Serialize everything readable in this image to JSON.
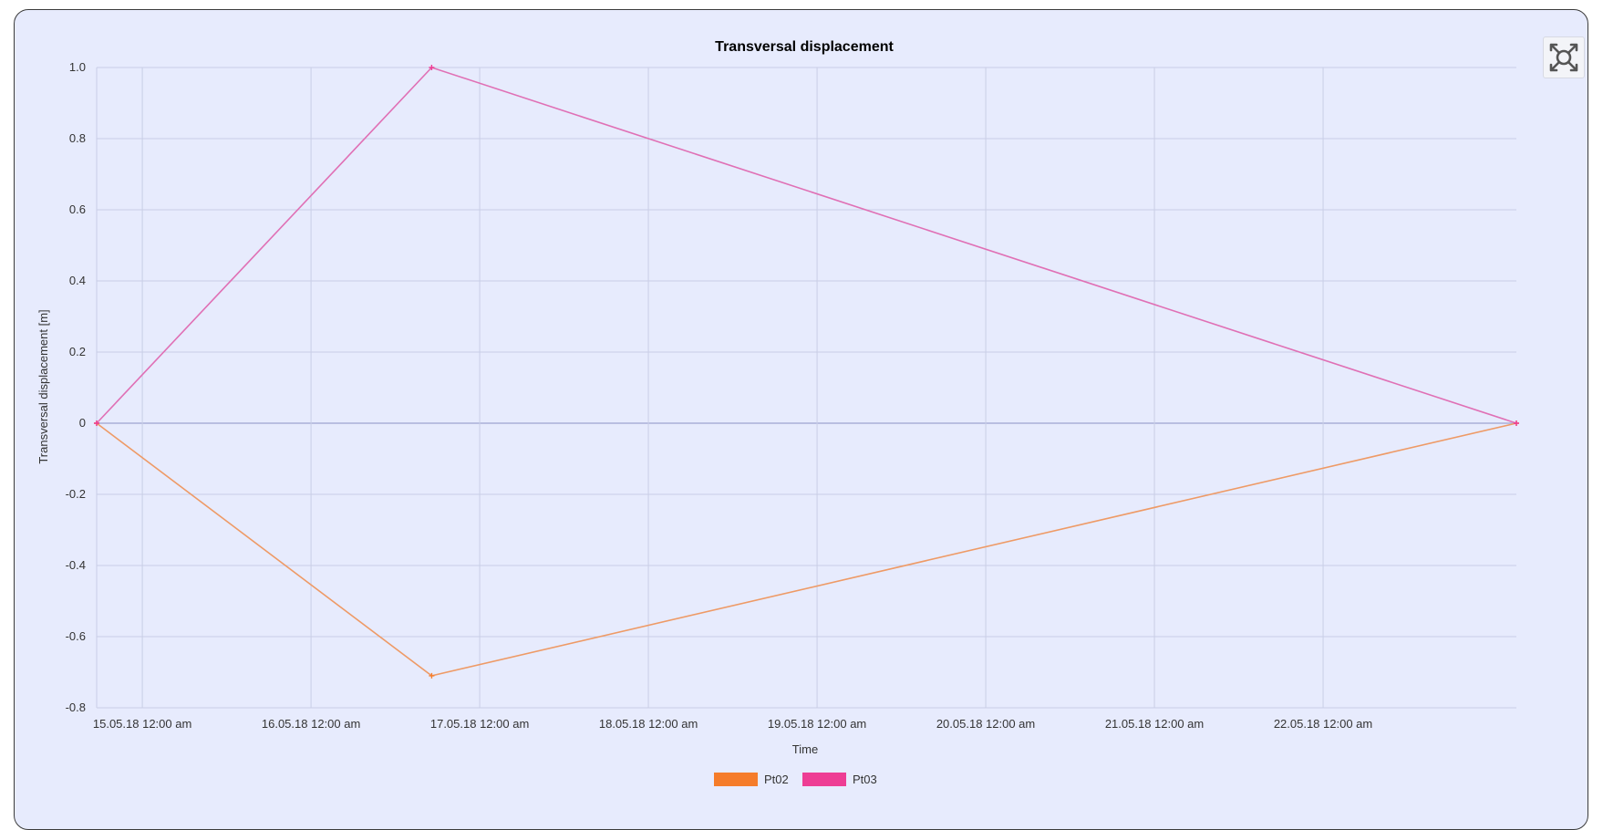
{
  "toolbar": {
    "expand_icon": "fullscreen-expand-icon"
  },
  "colors": {
    "panel_background": "#e7ebfd",
    "grid": "#c9cee6",
    "zero_line": "#aab0d8",
    "axis_text": "#333333",
    "title_text": "#000000"
  },
  "chart_data": {
    "type": "line",
    "title": "Transversal displacement",
    "xlabel": "Time",
    "ylabel": "Transversal displacement [m]",
    "grid": true,
    "legend_position": "bottom-center",
    "x_axis": {
      "type": "datetime",
      "range": [
        "2018-05-14 17:30",
        "2018-05-23 03:30"
      ],
      "ticks": [
        {
          "value": "2018-05-15 00:00",
          "label": "15.05.18 12:00 am"
        },
        {
          "value": "2018-05-16 00:00",
          "label": "16.05.18 12:00 am"
        },
        {
          "value": "2018-05-17 00:00",
          "label": "17.05.18 12:00 am"
        },
        {
          "value": "2018-05-18 00:00",
          "label": "18.05.18 12:00 am"
        },
        {
          "value": "2018-05-19 00:00",
          "label": "19.05.18 12:00 am"
        },
        {
          "value": "2018-05-20 00:00",
          "label": "20.05.18 12:00 am"
        },
        {
          "value": "2018-05-21 00:00",
          "label": "21.05.18 12:00 am"
        },
        {
          "value": "2018-05-22 00:00",
          "label": "22.05.18 12:00 am"
        }
      ]
    },
    "y_axis": {
      "range": [
        -0.8,
        1.0
      ],
      "ticks": [
        {
          "value": 1.0,
          "label": "1.0"
        },
        {
          "value": 0.8,
          "label": "0.8"
        },
        {
          "value": 0.6,
          "label": "0.6"
        },
        {
          "value": 0.4,
          "label": "0.4"
        },
        {
          "value": 0.2,
          "label": "0.2"
        },
        {
          "value": 0,
          "label": "0"
        },
        {
          "value": -0.2,
          "label": "-0.2"
        },
        {
          "value": -0.4,
          "label": "-0.4"
        },
        {
          "value": -0.6,
          "label": "-0.6"
        },
        {
          "value": -0.8,
          "label": "-0.8"
        }
      ]
    },
    "series": [
      {
        "name": "Pt02",
        "color": "#f57c2a",
        "line_color": "#ee9a66",
        "points": [
          {
            "x": "2018-05-14 17:30",
            "y": 0
          },
          {
            "x": "2018-05-16 17:10",
            "y": -0.71
          },
          {
            "x": "2018-05-23 03:30",
            "y": 0
          }
        ]
      },
      {
        "name": "Pt03",
        "color": "#ee3d94",
        "line_color": "#e070b5",
        "points": [
          {
            "x": "2018-05-14 17:30",
            "y": 0
          },
          {
            "x": "2018-05-16 17:10",
            "y": 1.0
          },
          {
            "x": "2018-05-23 03:30",
            "y": 0
          }
        ]
      }
    ]
  }
}
